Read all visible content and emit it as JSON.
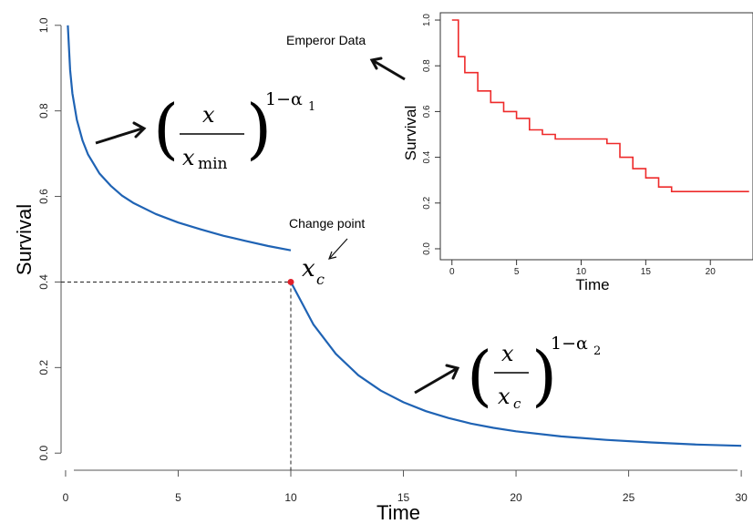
{
  "chart_data": [
    {
      "type": "line",
      "xlabel": "Time",
      "ylabel": "Survival",
      "xlim": [
        -0.2,
        30.4
      ],
      "ylim": [
        -0.04,
        1.04
      ],
      "xticks": [
        0,
        5,
        10,
        15,
        20,
        25,
        30
      ],
      "yticks": [
        0.0,
        0.2,
        0.4,
        0.6,
        0.8,
        1.0
      ],
      "tick_labels_x": [
        "0",
        "5",
        "10",
        "15",
        "20",
        "25",
        "30"
      ],
      "tick_labels_y": [
        "0.0",
        "0.2",
        "0.4",
        "0.6",
        "0.8",
        "1.0"
      ],
      "line_color": "#1f63b4",
      "marker_color": "#e0202a",
      "series": [
        {
          "x": [
            0.1,
            0.2,
            0.3,
            0.5,
            0.75,
            1,
            1.5,
            2,
            2.5,
            3,
            4,
            5,
            6,
            7,
            8,
            9,
            10
          ],
          "y": [
            1.0,
            0.896,
            0.841,
            0.779,
            0.731,
            0.698,
            0.654,
            0.625,
            0.602,
            0.585,
            0.559,
            0.539,
            0.523,
            0.508,
            0.496,
            0.484,
            0.474
          ]
        },
        {
          "x": [
            10,
            11,
            12,
            13,
            14,
            15,
            16,
            17,
            18,
            19,
            20,
            22,
            24,
            26,
            28,
            30
          ],
          "y": [
            0.4,
            0.301,
            0.232,
            0.182,
            0.146,
            0.119,
            0.098,
            0.082,
            0.069,
            0.059,
            0.051,
            0.039,
            0.031,
            0.025,
            0.02,
            0.017
          ]
        }
      ],
      "change_point": {
        "x": 10,
        "y": 0.4
      }
    },
    {
      "type": "line",
      "step": true,
      "xlabel": "Time",
      "ylabel": "Survival",
      "xlim": [
        -0.9,
        23.3
      ],
      "ylim": [
        -0.02,
        1.02
      ],
      "xticks": [
        0,
        5,
        10,
        15,
        20
      ],
      "yticks": [
        0.0,
        0.2,
        0.4,
        0.6,
        0.8,
        1.0
      ],
      "tick_labels_x": [
        "0",
        "5",
        "10",
        "15",
        "20"
      ],
      "tick_labels_y": [
        "0.0",
        "0.2",
        "0.4",
        "0.6",
        "0.8",
        "1.0"
      ],
      "line_color": "#ee2a2a",
      "series": [
        {
          "x": [
            0,
            0.5,
            1,
            2,
            3,
            4,
            5,
            6,
            7,
            8,
            12,
            13,
            14,
            15,
            16,
            17,
            23
          ],
          "y": [
            1.0,
            0.84,
            0.77,
            0.69,
            0.64,
            0.6,
            0.57,
            0.52,
            0.5,
            0.48,
            0.46,
            0.4,
            0.35,
            0.31,
            0.27,
            0.25,
            0.25
          ]
        }
      ]
    }
  ],
  "annotations": {
    "emperor": "Emperor Data",
    "change_point": "Change point",
    "xc_label": "x",
    "xc_sub": "c",
    "formula1": {
      "num": "x",
      "den": "x",
      "den_sub": "min",
      "exp": "1−α",
      "exp_sub": "1"
    },
    "formula2": {
      "num": "x",
      "den": "x",
      "den_sub": "c",
      "exp": "1−α",
      "exp_sub": "2"
    }
  }
}
